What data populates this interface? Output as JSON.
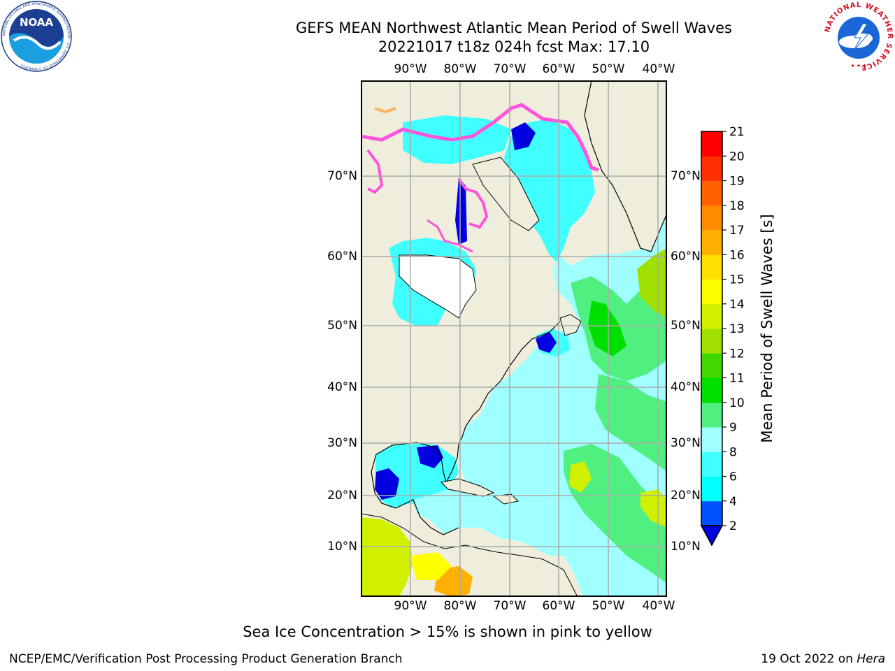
{
  "title_line1": "GEFS MEAN Northwest Atlantic Mean Period of Swell Waves",
  "title_line2": "20221017 t18z 024h fcst   Max: 17.10",
  "lon_labels": [
    "90°W",
    "80°W",
    "70°W",
    "60°W",
    "50°W",
    "40°W"
  ],
  "lat_labels": [
    "70°N",
    "60°N",
    "50°N",
    "40°N",
    "30°N",
    "20°N",
    "10°N"
  ],
  "colorbar": {
    "title": "Mean Period of Swell Waves [s]",
    "ticks": [
      "2",
      "4",
      "6",
      "8",
      "9",
      "10",
      "11",
      "12",
      "13",
      "14",
      "15",
      "16",
      "17",
      "18",
      "19",
      "20",
      "21"
    ],
    "colors": [
      "#0050ff",
      "#00ffff",
      "#40ffff",
      "#a0ffff",
      "#50f080",
      "#00e000",
      "#40d800",
      "#a0e000",
      "#d0f000",
      "#ffff00",
      "#ffe000",
      "#ffb000",
      "#ff8c00",
      "#ff6000",
      "#ff3000",
      "#ff0000"
    ],
    "under_color": "#0000e0"
  },
  "ice_note": "Sea Ice Concentration > 15% is shown in pink to yellow",
  "footer_left": "NCEP/EMC/Verification Post Processing Product Generation Branch",
  "footer_right_date": "19 Oct 2022 on",
  "footer_right_host": "Hera",
  "logos": {
    "noaa_text": "NOAA",
    "nws_text": "NATIONAL WEATHER SERVICE",
    "noaa_ring_text": "NATIONAL OCEANIC AND ATMOSPHERIC ADMINISTRATION · U.S. DEPARTMENT OF COMMERCE"
  },
  "colors": {
    "land": "#efeedc",
    "ocean_base": "#a0ffff",
    "ice": "#ff55dd",
    "grid": "#aaaaaa"
  }
}
